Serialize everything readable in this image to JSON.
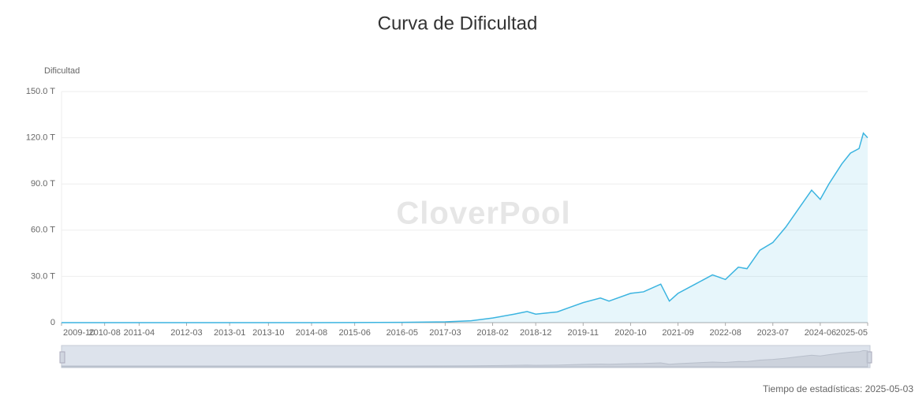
{
  "chart_data": {
    "type": "line",
    "title": "Curva de Dificultad",
    "y_label": "Dificultad",
    "watermark": "CloverPool",
    "footer": "Tiempo de estadísticas: 2025-05-03",
    "color": "#3bb4e0",
    "area": true,
    "grid": true,
    "x": [
      "2009-10",
      "2010-08",
      "2011-04",
      "2012-03",
      "2013-01",
      "2013-10",
      "2014-08",
      "2015-06",
      "2016-05",
      "2017-03",
      "2017-09",
      "2018-02",
      "2018-07",
      "2018-10",
      "2018-12",
      "2019-05",
      "2019-08",
      "2019-11",
      "2020-03",
      "2020-05",
      "2020-10",
      "2021-01",
      "2021-05",
      "2021-07",
      "2021-09",
      "2022-01",
      "2022-05",
      "2022-08",
      "2022-11",
      "2023-01",
      "2023-04",
      "2023-07",
      "2023-10",
      "2024-01",
      "2024-04",
      "2024-06",
      "2024-08",
      "2024-11",
      "2025-01",
      "2025-03",
      "2025-04",
      "2025-05"
    ],
    "values": [
      0,
      0,
      0,
      0,
      0,
      0,
      0.02,
      0.05,
      0.2,
      0.5,
      1.2,
      3,
      5.5,
      7.2,
      5.5,
      7,
      10,
      13,
      16,
      14,
      19,
      20,
      25,
      14,
      19,
      25,
      31,
      28,
      36,
      35,
      47,
      52,
      62,
      74,
      86,
      80,
      90,
      103,
      110,
      113,
      123,
      120
    ],
    "xlim": [
      "2009-10",
      "2025-05"
    ],
    "xticks": [
      "2009-10",
      "2010-08",
      "2011-04",
      "2012-03",
      "2013-01",
      "2013-10",
      "2014-08",
      "2015-06",
      "2016-05",
      "2017-03",
      "2018-02",
      "2018-12",
      "2019-11",
      "2020-10",
      "2021-09",
      "2022-08",
      "2023-07",
      "2024-06",
      "2025-05"
    ],
    "ylim": [
      0,
      150
    ],
    "yticks": [
      0,
      {
        "value": 30,
        "label": "30.0 T"
      },
      {
        "value": 60,
        "label": "60.0 T"
      },
      {
        "value": 90,
        "label": "90.0 T"
      },
      {
        "value": 120,
        "label": "120.0 T"
      },
      {
        "value": 150,
        "label": "150.0 T"
      }
    ]
  }
}
